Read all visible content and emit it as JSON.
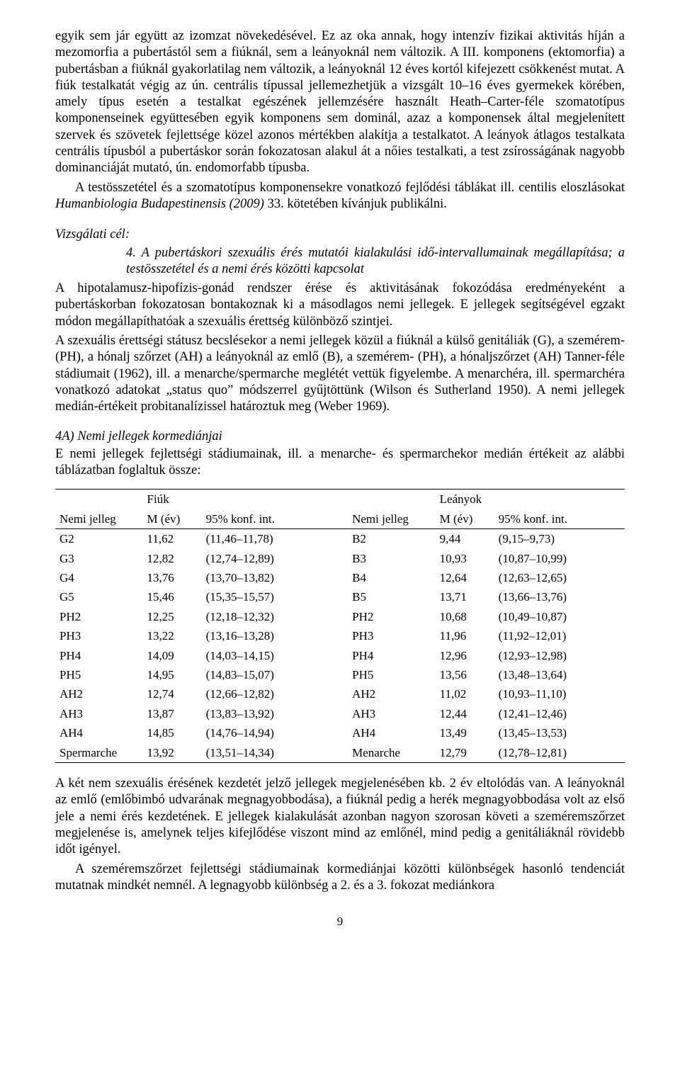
{
  "paragraphs": {
    "p1": "egyik sem jár együtt az izomzat növekedésével. Ez az oka annak, hogy intenzív fizikai aktivitás híján a mezomorfia a pubertástól sem a fiúknál, sem a leányoknál nem változik. A III. komponens (ektomorfia) a pubertásban a fiúknál gyakorlatilag nem változik, a leányoknál 12 éves kortól kifejezett csökkenést mutat. A fiúk testalkatát végig az ún. centrális típussal jellemezhetjük a vizsgált 10–16 éves gyermekek körében, amely típus esetén a testalkat egészének jellemzésére használt Heath–Carter-féle szomatotípus komponenseinek együttesében egyik komponens sem dominál, azaz a komponensek által megjelenített szervek és szövetek fejlettsége közel azonos mértékben alakítja a testalkatot. A leányok átlagos testalkata centrális típusból a pubertáskor során fokozatosan alakul át a nőies testalkati, a test zsírosságának nagyobb dominanciáját mutató, ún. endomorfabb típusba.",
    "p2a": "A testösszetétel és a szomatotípus komponensekre vonatkozó fejlődési táblákat ill. centilis eloszlásokat ",
    "p2b_italic": "Humanbiologia Budapestinensis (2009)",
    "p2c": " 33. kötetében kívánjuk publikálni.",
    "vizsgalati_cel": "Vizsgálati cél:",
    "goal4": "4. A pubertáskori szexuális érés mutatói kialakulási idő-intervallumainak megállapítása; a testösszetétel és a nemi érés közötti kapcsolat",
    "p3": "A hipotalamusz-hipofízis-gonád rendszer érése és aktivitásának fokozódása eredményeként a pubertáskorban fokozatosan bontakoznak ki a másodlagos nemi jellegek. E jellegek segítségével egzakt módon megállapíthatóak a szexuális érettség különböző szintjei.",
    "p4": "A szexuális érettségi státusz becslésekor a nemi jellegek közül a fiúknál a külső genitáliák (G), a szemérem- (PH), a hónalj szőrzet (AH) a leányoknál az emlő (B), a szemérem- (PH), a hónaljszőrzet (AH) Tanner-féle stádiumait (1962), ill. a menarche/spermarche meglétét vettük figyelembe. A menarchéra, ill. spermarchéra vonatkozó adatokat „status quo” módszerrel gyűjtöttünk (Wilson és Sutherland 1950). A nemi jellegek medián-értékeit probitanalízissel határoztuk meg (Weber 1969).",
    "sub4a": "4A) Nemi jellegek kormediánjai",
    "p5": "E nemi jellegek fejlettségi stádiumainak, ill. a menarche- és spermarchekor medián értékeit az alábbi táblázatban foglaltuk össze:",
    "p6": "A két nem szexuális érésének kezdetét jelző jellegek megjelenésében kb. 2 év eltolódás van. A leányoknál az emlő (emlőbimbó udvarának megnagyobbodása), a fiúknál pedig a herék megnagyobbodása volt az első jele a nemi érés kezdetének. E jellegek kialakulását azonban nagyon szorosan követi a szeméremszőrzet megjelenése is, amelynek teljes kifejlődése viszont mind az emlőnél, mind pedig a genitáliáknál rövidebb időt igényel.",
    "p7": "A szeméremszőrzet fejlettségi stádiumainak kormediánjai közötti különbségek hasonló tendenciát mutatnak mindkét nemnél. A legnagyobb különbség a 2. és a 3. fokozat mediánkora"
  },
  "table": {
    "header": {
      "fiuk": "Fiúk",
      "leanyok": "Leányok",
      "nemi_jelleg": "Nemi jelleg",
      "m_ev": "M (év)",
      "konf": "95% konf. int."
    },
    "rows": [
      {
        "lbl_f": "G2",
        "m_f": "11,62",
        "ci_f": "(11,46–11,78)",
        "lbl_l": "B2",
        "m_l": "9,44",
        "ci_l": "(9,15–9,73)"
      },
      {
        "lbl_f": "G3",
        "m_f": "12,82",
        "ci_f": "(12,74–12,89)",
        "lbl_l": "B3",
        "m_l": "10,93",
        "ci_l": "(10,87–10,99)"
      },
      {
        "lbl_f": "G4",
        "m_f": "13,76",
        "ci_f": "(13,70–13,82)",
        "lbl_l": "B4",
        "m_l": "12,64",
        "ci_l": "(12,63–12,65)"
      },
      {
        "lbl_f": "G5",
        "m_f": "15,46",
        "ci_f": "(15,35–15,57)",
        "lbl_l": "B5",
        "m_l": "13,71",
        "ci_l": "(13,66–13,76)"
      },
      {
        "lbl_f": "PH2",
        "m_f": "12,25",
        "ci_f": "(12,18–12,32)",
        "lbl_l": "PH2",
        "m_l": "10,68",
        "ci_l": "(10,49–10,87)"
      },
      {
        "lbl_f": "PH3",
        "m_f": "13,22",
        "ci_f": "(13,16–13,28)",
        "lbl_l": "PH3",
        "m_l": "11,96",
        "ci_l": "(11,92–12,01)"
      },
      {
        "lbl_f": "PH4",
        "m_f": "14,09",
        "ci_f": "(14,03–14,15)",
        "lbl_l": "PH4",
        "m_l": "12,96",
        "ci_l": "(12,93–12,98)"
      },
      {
        "lbl_f": "PH5",
        "m_f": "14,95",
        "ci_f": "(14,83–15,07)",
        "lbl_l": "PH5",
        "m_l": "13,56",
        "ci_l": "(13,48–13,64)"
      },
      {
        "lbl_f": "AH2",
        "m_f": "12,74",
        "ci_f": "(12,66–12,82)",
        "lbl_l": "AH2",
        "m_l": "11,02",
        "ci_l": "(10,93–11,10)"
      },
      {
        "lbl_f": "AH3",
        "m_f": "13,87",
        "ci_f": "(13,83–13,92)",
        "lbl_l": "AH3",
        "m_l": "12,44",
        "ci_l": "(12,41–12,46)"
      },
      {
        "lbl_f": "AH4",
        "m_f": "14,85",
        "ci_f": "(14,76–14,94)",
        "lbl_l": "AH4",
        "m_l": "13,49",
        "ci_l": "(13,45–13,53)"
      },
      {
        "lbl_f": "Spermarche",
        "m_f": "13,92",
        "ci_f": "(13,51–14,34)",
        "lbl_l": "Menarche",
        "m_l": "12,79",
        "ci_l": "(12,78–12,81)"
      }
    ]
  },
  "page_number": "9"
}
